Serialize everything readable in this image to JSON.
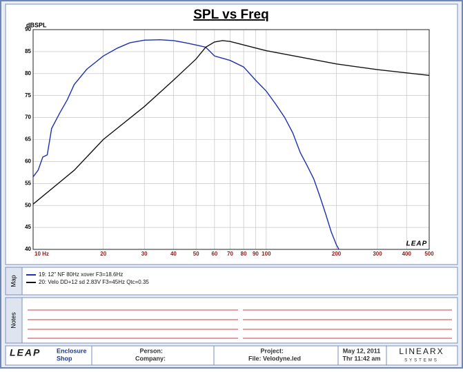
{
  "chart_data": {
    "type": "line",
    "title": "SPL vs Freq",
    "y_label": "dBSPL",
    "logo": "LEAP",
    "xscale": "log",
    "xlim": [
      10,
      500
    ],
    "ylim": [
      40,
      90
    ],
    "xticks": [
      {
        "value": 10,
        "label": "10 Hz"
      },
      20,
      30,
      40,
      50,
      60,
      70,
      80,
      90,
      100,
      200,
      300,
      400,
      500
    ],
    "yticks": [
      40,
      45,
      50,
      55,
      60,
      65,
      70,
      75,
      80,
      85,
      90
    ],
    "grid": true,
    "series": [
      {
        "name": "19: 12\" NF 80Hz xover F3=18.6Hz",
        "color": "#1c2fb0",
        "x": [
          10,
          10.5,
          11,
          11.5,
          12,
          13,
          14,
          15,
          17,
          20,
          23,
          26,
          30,
          35,
          40,
          45,
          50,
          55,
          60,
          70,
          80,
          90,
          100,
          110,
          120,
          130,
          140,
          150,
          160,
          170,
          180,
          190,
          200,
          205
        ],
        "values": [
          56.5,
          58,
          61,
          61.5,
          67.5,
          71,
          74,
          77.5,
          81,
          84,
          85.8,
          87,
          87.6,
          87.7,
          87.5,
          87,
          86.5,
          86,
          84,
          83,
          81.5,
          78.5,
          76,
          73,
          70,
          66.5,
          62,
          59,
          56,
          52,
          48,
          44,
          41,
          40
        ]
      },
      {
        "name": "20: Velo DD+12 sd 2.83V F3=45Hz Qtc=0.35",
        "color": "#111111",
        "x": [
          10,
          15,
          20,
          30,
          40,
          50,
          55,
          60,
          65,
          70,
          100,
          200,
          300,
          500
        ],
        "values": [
          50.3,
          58,
          65,
          72.5,
          78.5,
          83.3,
          86,
          87.2,
          87.5,
          87.3,
          85.2,
          82.2,
          80.9,
          79.6
        ]
      }
    ]
  },
  "panel": {
    "map_label": "Map",
    "notes_label": "Notes",
    "footer": {
      "logo": "LEAP",
      "app_line1": "Enclosure",
      "app_line2": "Shop",
      "person": "Person:",
      "company": "Company:",
      "project": "Project:",
      "file": "File: Velodyne.led",
      "date": "May 12, 2011",
      "time": "Thr 11:42 am",
      "brand": "LINEARX",
      "brand_sub": "SYSTEMS"
    }
  }
}
